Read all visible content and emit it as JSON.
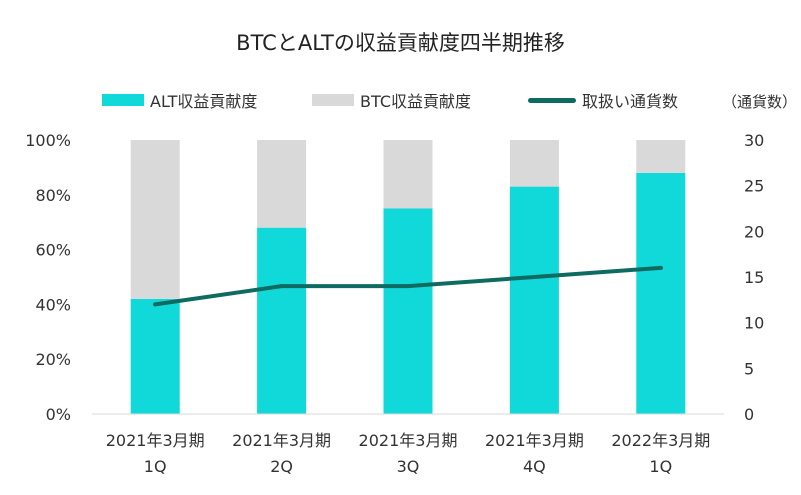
{
  "chart_data": {
    "type": "bar",
    "title": "BTCとALTの収益貢献度四半期推移",
    "categories": [
      [
        "2021年3月期",
        "1Q"
      ],
      [
        "2021年3月期",
        "2Q"
      ],
      [
        "2021年3月期",
        "3Q"
      ],
      [
        "2021年3月期",
        "4Q"
      ],
      [
        "2022年3月期",
        "1Q"
      ]
    ],
    "stacked": true,
    "series": [
      {
        "name": "ALT収益貢献度",
        "kind": "bar",
        "axis": "left",
        "color": "#12d9d9",
        "values": [
          42,
          68,
          75,
          83,
          88
        ]
      },
      {
        "name": "BTC収益貢献度",
        "kind": "bar",
        "axis": "left",
        "color": "#d9d9d9",
        "values": [
          58,
          32,
          25,
          17,
          12
        ]
      },
      {
        "name": "取扱い通貨数",
        "kind": "line",
        "axis": "right",
        "color": "#0e6b61",
        "values": [
          12,
          14,
          14,
          15,
          16
        ]
      }
    ],
    "left_axis": {
      "ticks": [
        "0%",
        "20%",
        "40%",
        "60%",
        "80%",
        "100%"
      ],
      "ylim": [
        0,
        100
      ]
    },
    "right_axis": {
      "label": "（通貨数）",
      "ticks": [
        "0",
        "5",
        "10",
        "15",
        "20",
        "25",
        "30"
      ],
      "ylim": [
        0,
        30
      ]
    },
    "legend_position": "top",
    "grid": false
  }
}
